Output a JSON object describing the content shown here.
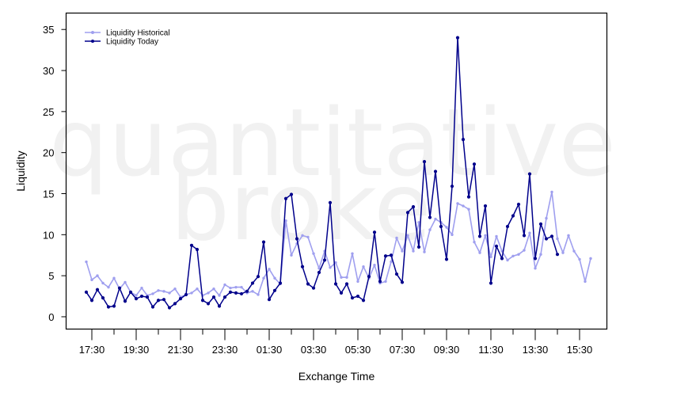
{
  "chart_data": {
    "type": "line",
    "title": "",
    "xlabel": "Exchange Time",
    "ylabel": "Liquidity",
    "watermark": [
      "quantitative",
      "broke"
    ],
    "ylim": [
      -1.5,
      37
    ],
    "yticks": [
      0,
      5,
      10,
      15,
      20,
      25,
      30,
      35
    ],
    "xticks": [
      "17:30",
      "19:30",
      "21:30",
      "23:30",
      "01:30",
      "03:30",
      "05:30",
      "07:30",
      "09:30",
      "11:30",
      "13:30",
      "15:30"
    ],
    "x_interval": "15 min",
    "legend": {
      "placement": "top-left"
    },
    "series": [
      {
        "name": "Liquidity Historical",
        "color": "#9f9fef",
        "values": [
          6.7,
          4.5,
          5.0,
          4.1,
          3.6,
          4.7,
          3.4,
          4.2,
          3.0,
          2.6,
          3.5,
          2.6,
          2.8,
          3.2,
          3.1,
          2.9,
          3.4,
          2.4,
          2.7,
          2.9,
          3.4,
          2.6,
          2.9,
          3.4,
          2.6,
          3.9,
          3.5,
          3.6,
          3.6,
          2.9,
          3.1,
          2.7,
          4.7,
          5.8,
          4.7,
          4.0,
          11.7,
          7.5,
          8.9,
          9.9,
          9.7,
          7.7,
          5.9,
          8.0,
          6.0,
          6.6,
          4.8,
          4.8,
          7.7,
          4.3,
          6.1,
          4.7,
          6.3,
          4.1,
          4.3,
          6.7,
          9.6,
          8.0,
          9.9,
          8.0,
          11.5,
          7.9,
          10.6,
          11.9,
          11.5,
          10.9,
          10.0,
          13.8,
          13.5,
          13.1,
          9.1,
          7.8,
          9.9,
          7.3,
          9.8,
          8.0,
          6.9,
          7.4,
          7.6,
          8.1,
          10.2,
          5.9,
          7.6,
          12.0,
          15.2,
          9.5,
          7.8,
          9.9,
          8.0,
          7.0,
          4.3,
          7.1
        ]
      },
      {
        "name": "Liquidity Today",
        "color": "#00008b",
        "values": [
          3.0,
          2.0,
          3.3,
          2.3,
          1.2,
          1.3,
          3.5,
          1.9,
          3.0,
          2.2,
          2.5,
          2.4,
          1.2,
          2.0,
          2.1,
          1.1,
          1.6,
          2.2,
          2.7,
          8.7,
          8.2,
          2.0,
          1.6,
          2.4,
          1.3,
          2.4,
          3.0,
          2.9,
          2.8,
          3.1,
          4.1,
          4.9,
          9.1,
          2.1,
          3.2,
          4.1,
          14.4,
          14.9,
          9.5,
          6.1,
          4.0,
          3.5,
          5.4,
          6.9,
          13.9,
          4.0,
          2.9,
          4.0,
          2.3,
          2.5,
          2.0,
          4.9,
          10.3,
          4.3,
          7.4,
          7.5,
          5.2,
          4.2,
          12.7,
          13.4,
          8.5,
          18.9,
          12.1,
          17.7,
          11.0,
          7.0,
          15.9,
          34.0,
          21.6,
          14.6,
          18.6,
          9.8,
          13.5,
          4.1,
          8.6,
          7.1,
          11.0,
          12.3,
          13.7,
          9.9,
          17.4,
          7.1,
          11.3,
          9.5,
          9.8,
          7.6
        ]
      }
    ]
  }
}
